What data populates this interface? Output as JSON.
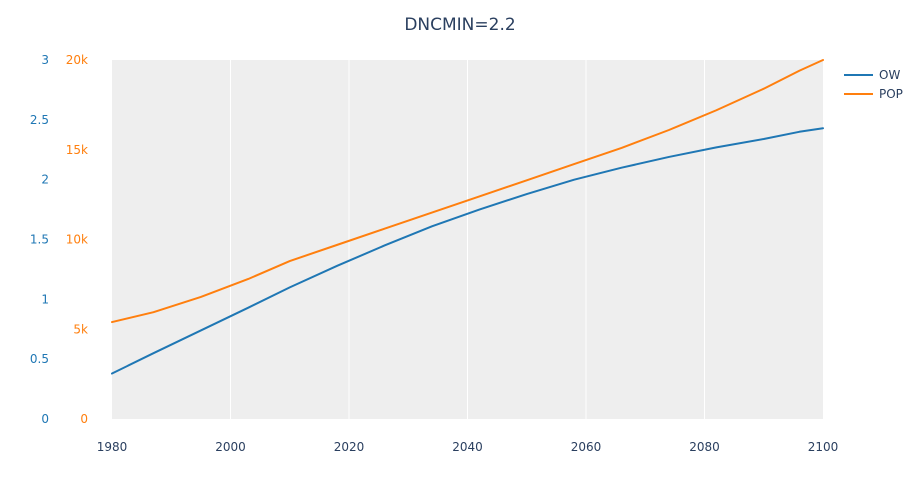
{
  "chart_data": {
    "type": "line",
    "title": "DNCMIN=2.2",
    "x": [
      1980,
      1987,
      1995,
      2003,
      2010,
      2018,
      2026,
      2034,
      2042,
      2050,
      2058,
      2066,
      2074,
      2082,
      2090,
      2096,
      2100
    ],
    "series": [
      {
        "name": "OW",
        "axis": "y",
        "color": "#1f77b4",
        "values": [
          0.38,
          0.55,
          0.74,
          0.93,
          1.1,
          1.28,
          1.45,
          1.61,
          1.75,
          1.88,
          2.0,
          2.1,
          2.19,
          2.27,
          2.34,
          2.4,
          2.43
        ]
      },
      {
        "name": "POP",
        "axis": "y2",
        "color": "#ff7f0e",
        "values": [
          5400,
          5950,
          6800,
          7800,
          8800,
          9700,
          10600,
          11500,
          12400,
          13300,
          14200,
          15100,
          16100,
          17200,
          18400,
          19400,
          20000
        ]
      }
    ],
    "xlim": [
      1980,
      2100
    ],
    "ylim": [
      0,
      3
    ],
    "y2lim": [
      0,
      20000
    ],
    "x_ticks": [
      1980,
      2000,
      2020,
      2040,
      2060,
      2080,
      2100
    ],
    "y_ticks": [
      0,
      0.5,
      1,
      1.5,
      2,
      2.5,
      3
    ],
    "y_tick_labels": [
      "0",
      "0.5",
      "1",
      "1.5",
      "2",
      "2.5",
      "3"
    ],
    "y2_ticks": [
      0,
      5000,
      10000,
      15000,
      20000
    ],
    "y2_tick_labels": [
      "0",
      "5k",
      "10k",
      "15k",
      "20k"
    ],
    "colors": {
      "plot_background": "#eeeeee",
      "grid": "#ffffff",
      "y_axis_text": "#1f77b4",
      "y2_axis_text": "#ff7f0e",
      "x_axis_text": "#2a3f5f"
    },
    "grid": true,
    "legend": "top-right"
  }
}
